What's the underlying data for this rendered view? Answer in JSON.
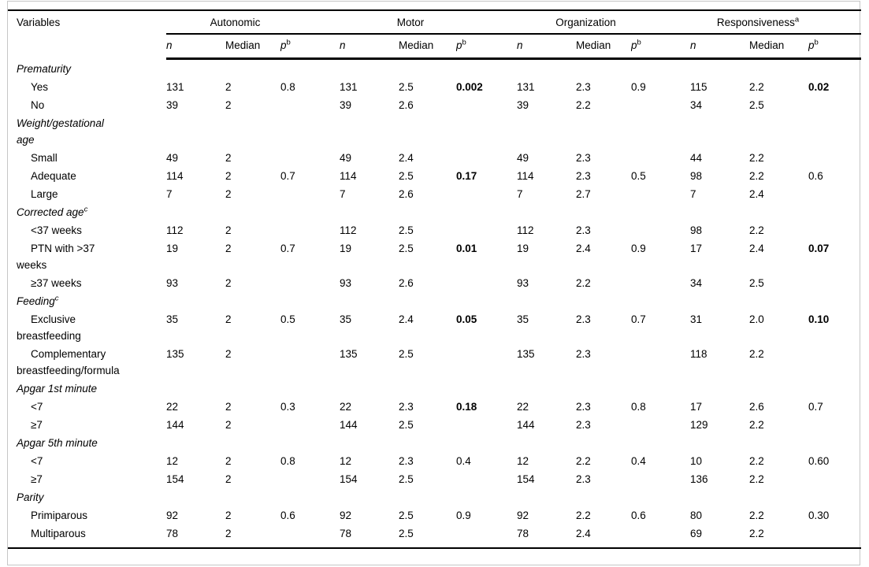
{
  "page": {
    "background": "#ffffff",
    "outer_border_color": "#c6c6c6",
    "rule_color": "#000000"
  },
  "table": {
    "variables_header": "Variables",
    "groups": [
      {
        "label": "Autonomic",
        "sup": ""
      },
      {
        "label": "Motor",
        "sup": ""
      },
      {
        "label": "Organization",
        "sup": ""
      },
      {
        "label": "Responsiveness",
        "sup": "a"
      }
    ],
    "subheader": {
      "n": "n",
      "median": "Median",
      "p": "p",
      "p_sup": "b"
    },
    "rows": [
      {
        "type": "section",
        "label": "Prematurity",
        "sup": ""
      },
      {
        "type": "item",
        "label": "Yes",
        "cells": [
          "131",
          "2",
          "0.8",
          "131",
          "2.5",
          {
            "v": "0.002",
            "bold": true
          },
          "131",
          "2.3",
          "0.9",
          "115",
          "2.2",
          {
            "v": "0.02",
            "bold": true
          }
        ]
      },
      {
        "type": "item",
        "label": "No",
        "cells": [
          "39",
          "2",
          "",
          "39",
          "2.6",
          "",
          "39",
          "2.2",
          "",
          "34",
          "2.5",
          ""
        ]
      },
      {
        "type": "section",
        "label": "Weight/gestational\nage",
        "sup": ""
      },
      {
        "type": "item",
        "label": "Small",
        "cells": [
          "49",
          "2",
          "",
          "49",
          "2.4",
          "",
          "49",
          "2.3",
          "",
          "44",
          "2.2",
          ""
        ]
      },
      {
        "type": "item",
        "label": "Adequate",
        "cells": [
          "114",
          "2",
          "0.7",
          "114",
          "2.5",
          {
            "v": "0.17",
            "bold": true
          },
          "114",
          "2.3",
          "0.5",
          "98",
          "2.2",
          "0.6"
        ]
      },
      {
        "type": "item",
        "label": "Large",
        "cells": [
          "7",
          "2",
          "",
          "7",
          "2.6",
          "",
          "7",
          "2.7",
          "",
          "7",
          "2.4",
          ""
        ]
      },
      {
        "type": "section",
        "label": "Corrected age",
        "sup": "c"
      },
      {
        "type": "item",
        "label": "<37 weeks",
        "cells": [
          "112",
          "2",
          "",
          "112",
          "2.5",
          "",
          "112",
          "2.3",
          "",
          "98",
          "2.2",
          ""
        ]
      },
      {
        "type": "item",
        "label": "PTN with >37\nweeks",
        "cells": [
          "19",
          "2",
          "0.7",
          "19",
          "2.5",
          {
            "v": "0.01",
            "bold": true
          },
          "19",
          "2.4",
          "0.9",
          "17",
          "2.4",
          {
            "v": "0.07",
            "bold": true
          }
        ]
      },
      {
        "type": "item",
        "label": "≥37 weeks",
        "cells": [
          "93",
          "2",
          "",
          "93",
          "2.6",
          "",
          "93",
          "2.2",
          "",
          "34",
          "2.5",
          ""
        ]
      },
      {
        "type": "section",
        "label": "Feeding",
        "sup": "c"
      },
      {
        "type": "item",
        "label": "Exclusive\nbreastfeeding",
        "cells": [
          "35",
          "2",
          "0.5",
          "35",
          "2.4",
          {
            "v": "0.05",
            "bold": true
          },
          "35",
          "2.3",
          "0.7",
          "31",
          "2.0",
          {
            "v": "0.10",
            "bold": true
          }
        ]
      },
      {
        "type": "item",
        "label": "Complementary\nbreastfeeding/formula",
        "cells": [
          "135",
          "2",
          "",
          "135",
          "2.5",
          "",
          "135",
          "2.3",
          "",
          "118",
          "2.2",
          ""
        ]
      },
      {
        "type": "section",
        "label": "Apgar 1st minute",
        "sup": ""
      },
      {
        "type": "item",
        "label": "<7",
        "cells": [
          "22",
          "2",
          "0.3",
          "22",
          "2.3",
          {
            "v": "0.18",
            "bold": true
          },
          "22",
          "2.3",
          "0.8",
          "17",
          "2.6",
          "0.7"
        ]
      },
      {
        "type": "item",
        "label": "≥7",
        "cells": [
          "144",
          "2",
          "",
          "144",
          "2.5",
          "",
          "144",
          "2.3",
          "",
          "129",
          "2.2",
          ""
        ]
      },
      {
        "type": "section",
        "label": "Apgar 5th minute",
        "sup": ""
      },
      {
        "type": "item",
        "label": "<7",
        "cells": [
          "12",
          "2",
          "0.8",
          "12",
          "2.3",
          "0.4",
          "12",
          "2.2",
          "0.4",
          "10",
          "2.2",
          "0.60"
        ]
      },
      {
        "type": "item",
        "label": "≥7",
        "cells": [
          "154",
          "2",
          "",
          "154",
          "2.5",
          "",
          "154",
          "2.3",
          "",
          "136",
          "2.2",
          ""
        ]
      },
      {
        "type": "section",
        "label": "Parity",
        "sup": ""
      },
      {
        "type": "item",
        "label": "Primiparous",
        "cells": [
          "92",
          "2",
          "0.6",
          "92",
          "2.5",
          "0.9",
          "92",
          "2.2",
          "0.6",
          "80",
          "2.2",
          "0.30"
        ]
      },
      {
        "type": "item",
        "label": "Multiparous",
        "cells": [
          "78",
          "2",
          "",
          "78",
          "2.5",
          "",
          "78",
          "2.4",
          "",
          "69",
          "2.2",
          ""
        ]
      }
    ]
  }
}
